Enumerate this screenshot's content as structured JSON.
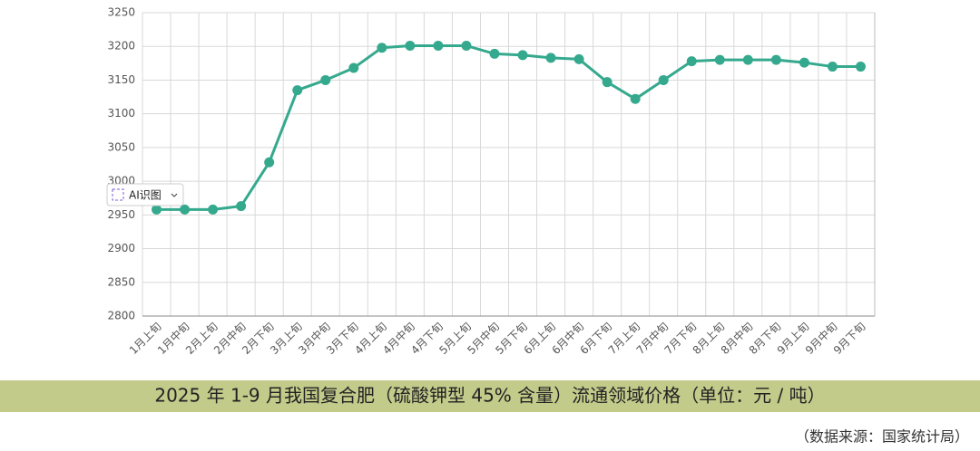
{
  "chart_data": {
    "type": "line",
    "title": "2025 年 1-9 月我国复合肥（硫酸钾型 45% 含量）流通领域价格（单位：元 / 吨）",
    "source": "（数据来源：国家统计局）",
    "overlay_button": "AI识图",
    "categories": [
      "1月上旬",
      "1月中旬",
      "2月上旬",
      "2月中旬",
      "2月下旬",
      "3月上旬",
      "3月中旬",
      "3月下旬",
      "4月上旬",
      "4月中旬",
      "4月下旬",
      "5月上旬",
      "5月中旬",
      "5月下旬",
      "6月上旬",
      "6月中旬",
      "6月下旬",
      "7月上旬",
      "7月中旬",
      "7月下旬",
      "8月上旬",
      "8月中旬",
      "8月下旬",
      "9月上旬",
      "9月中旬",
      "9月下旬"
    ],
    "values": [
      2958,
      2958,
      2958,
      2963,
      3028,
      3135,
      3150,
      3168,
      3198,
      3201,
      3201,
      3201,
      3189,
      3187,
      3183,
      3181,
      3147,
      3122,
      3150,
      3178,
      3180,
      3180,
      3180,
      3176,
      3170,
      3170
    ],
    "color": "#35a98e",
    "ylim": [
      2800,
      3250
    ],
    "yticks": [
      2800,
      2850,
      2900,
      2950,
      3000,
      3050,
      3100,
      3150,
      3200,
      3250
    ],
    "grid": true
  }
}
